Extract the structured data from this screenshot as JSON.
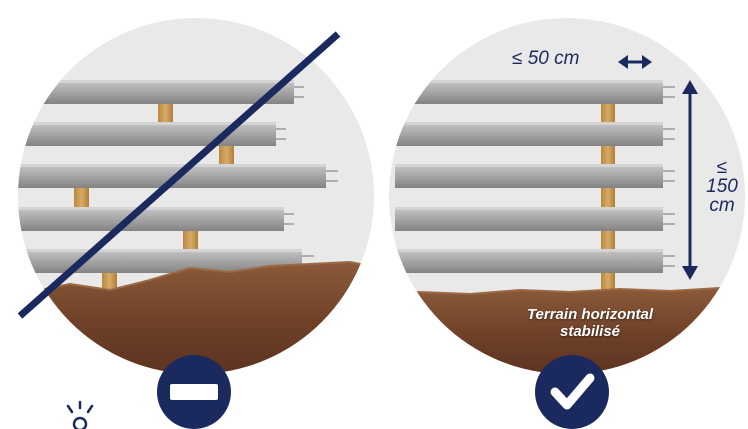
{
  "panels": {
    "incorrect": {
      "status_icon": "minus-icon"
    },
    "correct": {
      "status_icon": "check-icon",
      "max_spacing_label": "≤ 50 cm",
      "max_height_label": [
        "≤",
        "150",
        "cm"
      ],
      "terrain_label": [
        "Terrain horizontal",
        "stabilisé"
      ]
    }
  },
  "decor": {
    "corner_icon": "sparkle-icon"
  },
  "colors": {
    "accent_navy": "#1b2a5e",
    "background_circle": "#eaeaea",
    "concrete": "#a7a7a7",
    "timber": "#c99a52",
    "soil": "#7a4a30"
  }
}
